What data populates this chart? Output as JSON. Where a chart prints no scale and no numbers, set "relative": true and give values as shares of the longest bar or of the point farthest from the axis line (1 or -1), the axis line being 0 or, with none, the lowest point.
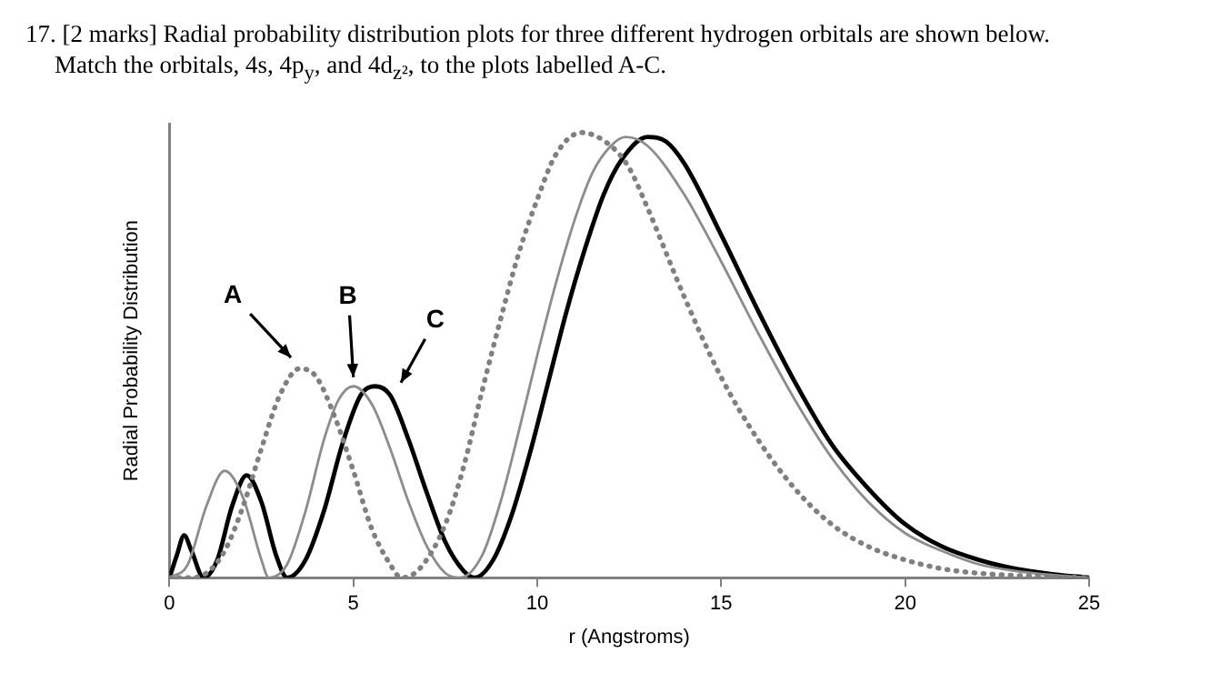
{
  "chart_data": {
    "type": "line",
    "title": "17. [2 marks] Radial probability distribution plots for three different hydrogen orbitals are shown below.",
    "subtitle": "Match the orbitals, 4s, 4p$_{y}$, and 4d$_{z²}$, to the plots labelled A-C.",
    "xlabel": "r (Angstroms)",
    "ylabel": "Radial Probability Distribution",
    "relative": true,
    "xlim": [
      0,
      25
    ],
    "xticks": [
      0,
      5,
      10,
      15,
      20,
      25
    ],
    "grid": false,
    "legend": false,
    "marker": "none",
    "series": [
      {
        "color": "#808080",
        "line_style": "dotted",
        "x": [
          0,
          0.5,
          1.0,
          1.5,
          2.0,
          2.5,
          3.0,
          3.55,
          4.0,
          4.5,
          5.0,
          5.5,
          6.0,
          6.3,
          6.8,
          7.5,
          8.0,
          8.5,
          9.0,
          9.5,
          10,
          10.5,
          11.2,
          12,
          12.5,
          13,
          14,
          15,
          16,
          17,
          18,
          19,
          20,
          21,
          22,
          23,
          25
        ],
        "values": [
          0,
          0,
          0.01,
          0.06,
          0.16,
          0.29,
          0.41,
          0.47,
          0.45,
          0.36,
          0.24,
          0.11,
          0.03,
          0,
          0.02,
          0.12,
          0.25,
          0.42,
          0.58,
          0.73,
          0.85,
          0.95,
          1.0,
          0.97,
          0.92,
          0.83,
          0.63,
          0.45,
          0.31,
          0.2,
          0.12,
          0.07,
          0.04,
          0.02,
          0.01,
          0.005,
          0
        ]
      },
      {
        "color": "#8c8c8c",
        "line_style": "solid",
        "x": [
          0,
          0.5,
          1.0,
          1.5,
          2.0,
          2.5,
          2.7,
          3.2,
          3.7,
          4.2,
          4.6,
          5.0,
          5.5,
          6,
          6.5,
          7,
          7.5,
          7.9,
          8.5,
          9,
          9.5,
          10,
          10.5,
          11,
          11.5,
          12,
          12.4,
          13,
          14,
          15,
          16,
          17,
          18,
          19,
          20,
          21,
          22,
          23,
          24,
          25
        ],
        "values": [
          0,
          0.03,
          0.16,
          0.24,
          0.18,
          0.04,
          0,
          0.03,
          0.15,
          0.31,
          0.4,
          0.43,
          0.39,
          0.29,
          0.17,
          0.07,
          0.01,
          0,
          0.05,
          0.17,
          0.33,
          0.5,
          0.66,
          0.8,
          0.91,
          0.97,
          0.99,
          0.97,
          0.86,
          0.71,
          0.55,
          0.4,
          0.27,
          0.17,
          0.1,
          0.06,
          0.03,
          0.015,
          0.006,
          0
        ]
      },
      {
        "color": "#000000",
        "line_style": "solid",
        "x": [
          0,
          0.2,
          0.4,
          0.6,
          0.93,
          1.3,
          1.7,
          2.1,
          2.5,
          2.9,
          3.2,
          3.7,
          4.2,
          4.7,
          5.2,
          5.6,
          6,
          6.5,
          7,
          7.5,
          8,
          8.3,
          8.8,
          9.3,
          9.8,
          10.3,
          10.8,
          11.3,
          11.8,
          12.3,
          13,
          13.5,
          14,
          15,
          16,
          17,
          18,
          19,
          20,
          21,
          22,
          23,
          24,
          25
        ],
        "values": [
          0,
          0.05,
          0.095,
          0.06,
          0,
          0.04,
          0.16,
          0.23,
          0.17,
          0.05,
          0,
          0.04,
          0.15,
          0.3,
          0.41,
          0.43,
          0.41,
          0.31,
          0.19,
          0.08,
          0.015,
          0,
          0.04,
          0.14,
          0.28,
          0.44,
          0.6,
          0.74,
          0.86,
          0.94,
          0.99,
          0.98,
          0.93,
          0.77,
          0.6,
          0.44,
          0.3,
          0.2,
          0.12,
          0.07,
          0.04,
          0.02,
          0.008,
          0
        ]
      }
    ],
    "annotations": [
      {
        "text": "A",
        "x": 3.55,
        "y": 0.47
      },
      {
        "text": "B",
        "x": 5.0,
        "y": 0.43
      },
      {
        "text": "C",
        "x": 5.6,
        "y": 0.43
      }
    ]
  }
}
